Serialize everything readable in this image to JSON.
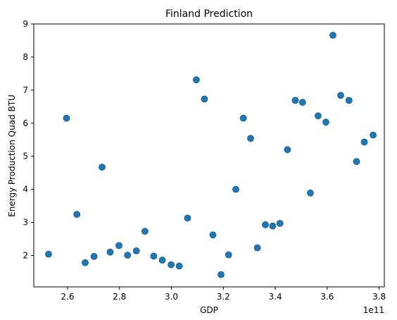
{
  "chart_data": {
    "type": "scatter",
    "title": "Finland Prediction",
    "xlabel": "GDP",
    "ylabel": "Energy Production Quad BTU",
    "x_offset_label": "1e11",
    "xlim": [
      2.47,
      3.82
    ],
    "ylim": [
      1.05,
      9.0
    ],
    "xticks": [
      2.6,
      2.8,
      3.0,
      3.2,
      3.4,
      3.6,
      3.8
    ],
    "xtick_labels": [
      "2.6",
      "2.8",
      "3.0",
      "3.2",
      "3.4",
      "3.6",
      "3.8"
    ],
    "yticks": [
      2,
      3,
      4,
      5,
      6,
      7,
      8,
      9
    ],
    "ytick_labels": [
      "2",
      "3",
      "4",
      "5",
      "6",
      "7",
      "8",
      "9"
    ],
    "grid": false,
    "marker_color": "#1f77b4",
    "marker_edge_color": "#1a5a8a",
    "points": [
      {
        "x": 2.527,
        "y": 2.04
      },
      {
        "x": 2.596,
        "y": 6.15
      },
      {
        "x": 2.636,
        "y": 3.24
      },
      {
        "x": 2.668,
        "y": 1.78
      },
      {
        "x": 2.702,
        "y": 1.97
      },
      {
        "x": 2.733,
        "y": 4.67
      },
      {
        "x": 2.764,
        "y": 2.1
      },
      {
        "x": 2.798,
        "y": 2.3
      },
      {
        "x": 2.831,
        "y": 2.01
      },
      {
        "x": 2.865,
        "y": 2.14
      },
      {
        "x": 2.898,
        "y": 2.73
      },
      {
        "x": 2.932,
        "y": 1.98
      },
      {
        "x": 2.965,
        "y": 1.86
      },
      {
        "x": 2.999,
        "y": 1.72
      },
      {
        "x": 3.03,
        "y": 1.68
      },
      {
        "x": 3.062,
        "y": 3.13
      },
      {
        "x": 3.096,
        "y": 7.31
      },
      {
        "x": 3.127,
        "y": 6.73
      },
      {
        "x": 3.16,
        "y": 2.62
      },
      {
        "x": 3.191,
        "y": 1.42
      },
      {
        "x": 3.22,
        "y": 2.02
      },
      {
        "x": 3.248,
        "y": 4.0
      },
      {
        "x": 3.277,
        "y": 6.15
      },
      {
        "x": 3.305,
        "y": 5.54
      },
      {
        "x": 3.331,
        "y": 2.23
      },
      {
        "x": 3.362,
        "y": 2.93
      },
      {
        "x": 3.39,
        "y": 2.89
      },
      {
        "x": 3.418,
        "y": 2.97
      },
      {
        "x": 3.447,
        "y": 5.2
      },
      {
        "x": 3.477,
        "y": 6.69
      },
      {
        "x": 3.505,
        "y": 6.63
      },
      {
        "x": 3.535,
        "y": 3.89
      },
      {
        "x": 3.565,
        "y": 6.22
      },
      {
        "x": 3.595,
        "y": 6.03
      },
      {
        "x": 3.622,
        "y": 8.66
      },
      {
        "x": 3.652,
        "y": 6.84
      },
      {
        "x": 3.684,
        "y": 6.69
      },
      {
        "x": 3.713,
        "y": 4.84
      },
      {
        "x": 3.743,
        "y": 5.43
      },
      {
        "x": 3.777,
        "y": 5.64
      }
    ]
  }
}
